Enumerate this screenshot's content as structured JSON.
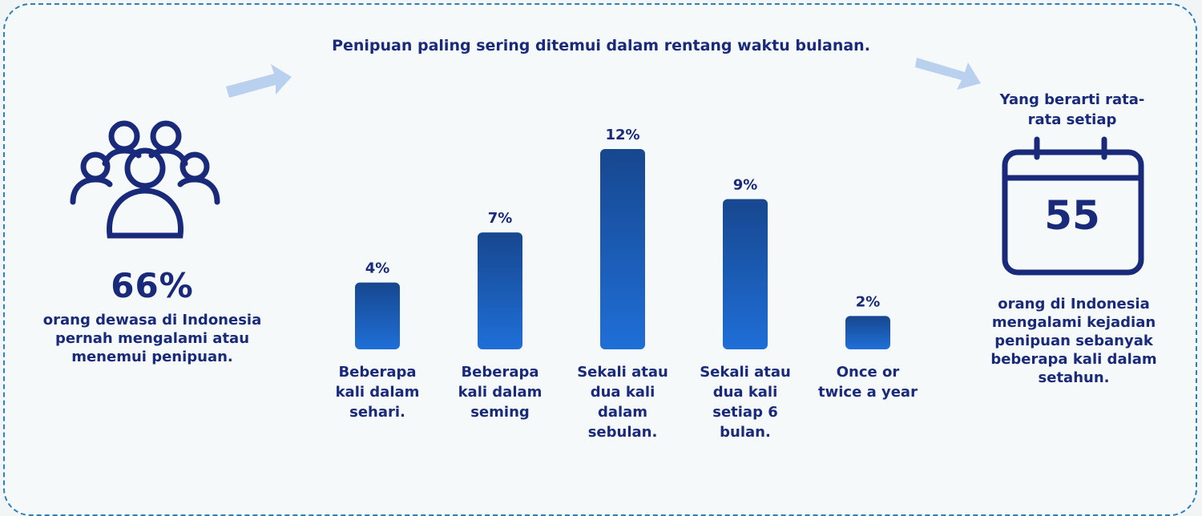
{
  "left": {
    "percent": "66%",
    "text": "orang dewasa di Indonesia pernah mengalami atau menemui penipuan."
  },
  "right": {
    "heading": "Yang berarti rata-rata setiap",
    "calendar_number": "55",
    "text": "orang di Indonesia mengalami kejadian penipuan sebanyak beberapa kali dalam setahun."
  },
  "chart_data": {
    "type": "bar",
    "title": "Penipuan paling sering ditemui dalam rentang waktu bulanan.",
    "categories": [
      "Beberapa kali dalam sehari.",
      "Beberapa kali dalam seming",
      "Sekali atau dua kali dalam sebulan.",
      "Sekali atau dua kali setiap 6 bulan.",
      "Once or twice a year"
    ],
    "values": [
      4,
      7,
      12,
      9,
      2
    ],
    "value_labels": [
      "4%",
      "7%",
      "12%",
      "9%",
      "2%"
    ],
    "ylim": [
      0,
      12
    ],
    "grid": false,
    "colors": {
      "bar_top": "#17478f",
      "bar_bottom": "#1f6fd8",
      "text": "#1a2a7a"
    }
  }
}
